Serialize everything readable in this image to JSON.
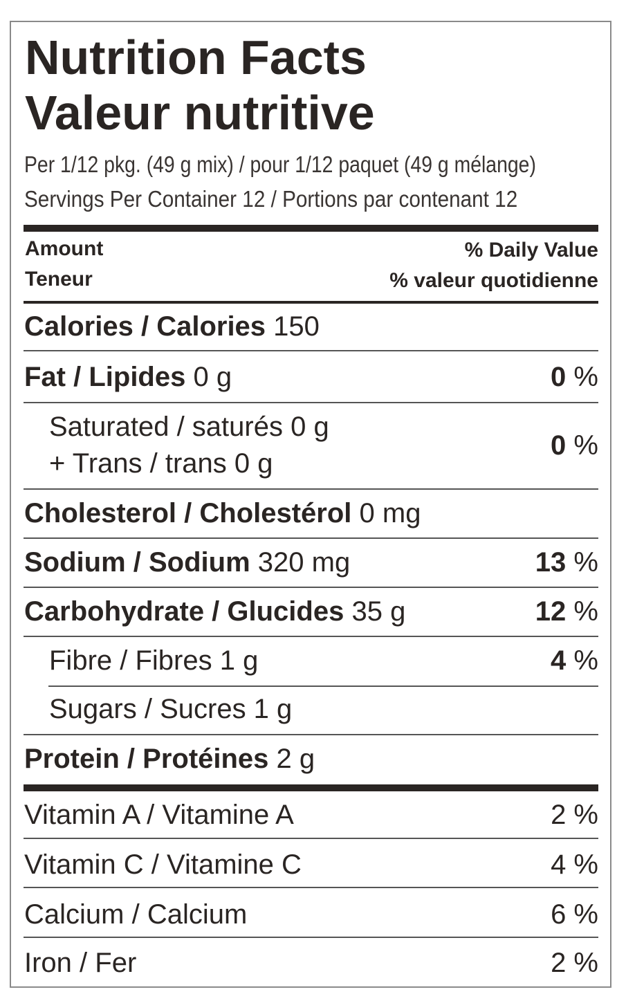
{
  "title_en": "Nutrition Facts",
  "title_fr": "Valeur nutritive",
  "serving_size": "Per 1/12 pkg. (49 g mix) / pour 1/12 paquet (49 g mélange)",
  "servings": "Servings Per Container 12 / Portions par contenant 12",
  "header": {
    "amount_en": "Amount",
    "amount_fr": "Teneur",
    "dv_en": "% Daily Value",
    "dv_fr": "% valeur quotidienne"
  },
  "nutrients": [
    {
      "label": "Calories / Calories",
      "amount": "150",
      "dv_num": "",
      "dv_unit": ""
    },
    {
      "label": "Fat / Lipides",
      "amount": "0 g",
      "dv_num": "0",
      "dv_unit": "%"
    },
    {
      "label": "Saturated / saturés 0 g",
      "label2": "+ Trans / trans 0 g",
      "dv_num": "0",
      "dv_unit": "%"
    },
    {
      "label": "Cholesterol / Cholestérol",
      "amount": "0 mg",
      "dv_num": "",
      "dv_unit": ""
    },
    {
      "label": "Sodium / Sodium",
      "amount": "320 mg",
      "dv_num": "13",
      "dv_unit": "%"
    },
    {
      "label": "Carbohydrate / Glucides",
      "amount": "35 g",
      "dv_num": "12",
      "dv_unit": "%"
    },
    {
      "label": "Fibre / Fibres 1 g",
      "dv_num": "4",
      "dv_unit": "%"
    },
    {
      "label": "Sugars / Sucres 1 g"
    },
    {
      "label": "Protein / Protéines",
      "amount": "2 g"
    }
  ],
  "vitamins": [
    {
      "label": "Vitamin A / Vitamine A",
      "dv": "2 %"
    },
    {
      "label": "Vitamin C / Vitamine C",
      "dv": "4 %"
    },
    {
      "label": "Calcium / Calcium",
      "dv": "6 %"
    },
    {
      "label": "Iron / Fer",
      "dv": "2 %"
    }
  ]
}
